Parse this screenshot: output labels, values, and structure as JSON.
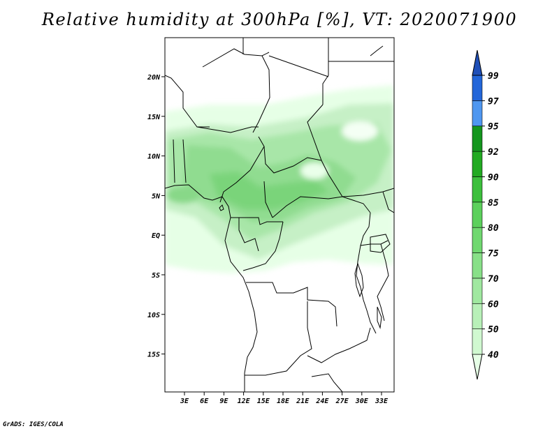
{
  "title": "Relative humidity at 300hPa [%], VT: 2020071900",
  "credit": "GrADS: IGES/COLA",
  "map": {
    "lat_ticks": [
      "20N",
      "15N",
      "10N",
      "5N",
      "EQ",
      "5S",
      "10S",
      "15S"
    ],
    "lon_ticks": [
      "3E",
      "6E",
      "9E",
      "12E",
      "15E",
      "18E",
      "21E",
      "24E",
      "27E",
      "30E",
      "33E"
    ]
  },
  "colorbar": {
    "levels": [
      "40",
      "50",
      "60",
      "70",
      "75",
      "80",
      "85",
      "90",
      "92",
      "95",
      "97",
      "99"
    ],
    "colors": [
      "#e6ffe6",
      "#d0f8d0",
      "#b8f0b8",
      "#a0e8a0",
      "#88e088",
      "#70d870",
      "#5cd05c",
      "#3cbf3c",
      "#22aa22",
      "#14961e",
      "#4f97f0",
      "#2366d9",
      "#1f4fb8"
    ]
  }
}
